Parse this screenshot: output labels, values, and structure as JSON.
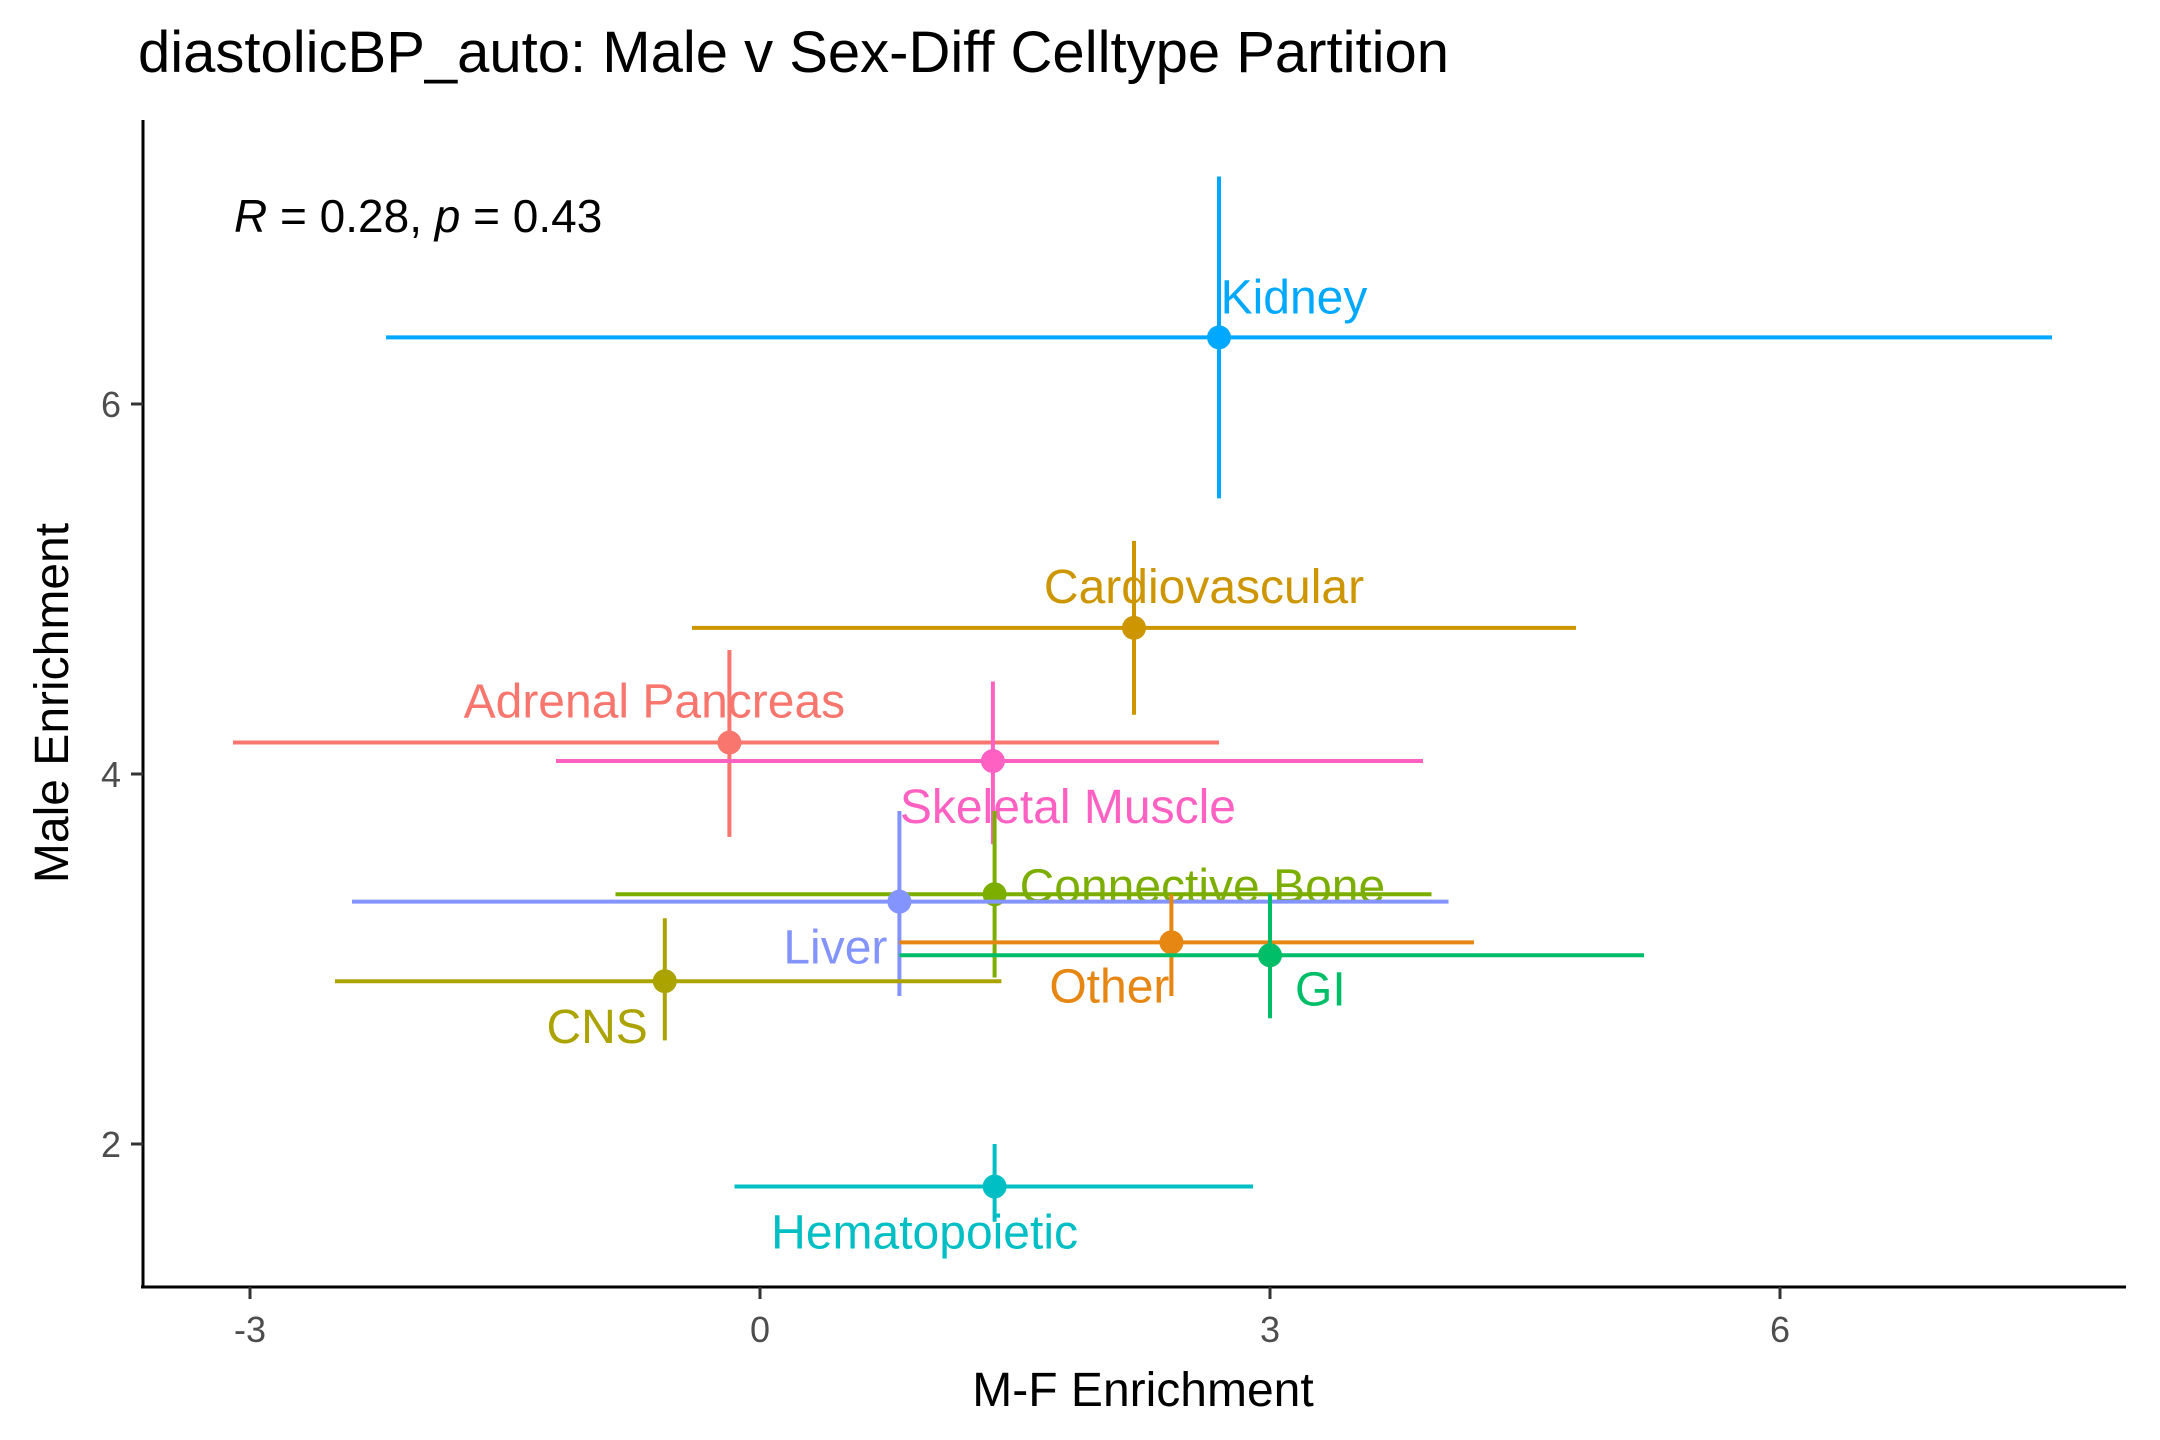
{
  "chart_data": {
    "type": "scatter",
    "title": "diastolicBP_auto: Male v Sex-Diff Celltype Partition",
    "xlabel": "M-F Enrichment",
    "ylabel": "Male Enrichment",
    "xlim": [
      -3.6,
      8.0
    ],
    "ylim": [
      1.3,
      7.3
    ],
    "xticks": [
      -3,
      0,
      3,
      6
    ],
    "yticks": [
      2,
      4,
      6
    ],
    "grid": false,
    "legend": "none",
    "annotation": {
      "R_symbol": "R",
      "r_text": " = 0.28, ",
      "p_symbol": "p",
      "p_text": " = 0.43"
    },
    "series": [
      {
        "name": "Kidney",
        "color": "#00A9FF",
        "x": 2.7,
        "y": 6.36,
        "xmin": -2.2,
        "xmax": 7.6,
        "ymin": 5.49,
        "ymax": 7.23,
        "label_pos": "above"
      },
      {
        "name": "Cardiovascular",
        "color": "#CD9600",
        "x": 2.2,
        "y": 4.79,
        "xmin": -0.4,
        "xmax": 4.8,
        "ymin": 4.32,
        "ymax": 5.26,
        "label_pos": "above-right"
      },
      {
        "name": "Adrenal Pancreas",
        "color": "#F8766D",
        "x": -0.18,
        "y": 4.17,
        "xmin": -3.1,
        "xmax": 2.7,
        "ymin": 3.66,
        "ymax": 4.67,
        "label_pos": "above-left"
      },
      {
        "name": "Skeletal Muscle",
        "color": "#FF61C3",
        "x": 1.37,
        "y": 4.07,
        "xmin": -1.2,
        "xmax": 3.9,
        "ymin": 3.62,
        "ymax": 4.5,
        "label_pos": "below-right"
      },
      {
        "name": "Connective Bone",
        "color": "#7CAE00",
        "x": 1.38,
        "y": 3.35,
        "xmin": -0.85,
        "xmax": 3.95,
        "ymin": 2.9,
        "ymax": 3.8,
        "label_pos": "right"
      },
      {
        "name": "Liver",
        "color": "#8494FF",
        "x": 0.82,
        "y": 3.31,
        "xmin": -2.4,
        "xmax": 4.05,
        "ymin": 2.8,
        "ymax": 3.8,
        "label_pos": "below-left"
      },
      {
        "name": "Other",
        "color": "#E68613",
        "x": 2.42,
        "y": 3.09,
        "xmin": 0.82,
        "xmax": 4.2,
        "ymin": 2.8,
        "ymax": 3.35,
        "label_pos": "below-left"
      },
      {
        "name": "GI",
        "color": "#00BE67",
        "x": 3.0,
        "y": 3.02,
        "xmin": 0.82,
        "xmax": 5.2,
        "ymin": 2.68,
        "ymax": 3.35,
        "label_pos": "below-right"
      },
      {
        "name": "CNS",
        "color": "#ABA300",
        "x": -0.56,
        "y": 2.88,
        "xmin": -2.5,
        "xmax": 1.42,
        "ymin": 2.56,
        "ymax": 3.22,
        "label_pos": "below-left"
      },
      {
        "name": "Hematopoietic",
        "color": "#00BFC4",
        "x": 1.38,
        "y": 1.77,
        "xmin": -0.15,
        "xmax": 2.9,
        "ymin": 1.58,
        "ymax": 2.0,
        "label_pos": "below"
      }
    ]
  }
}
